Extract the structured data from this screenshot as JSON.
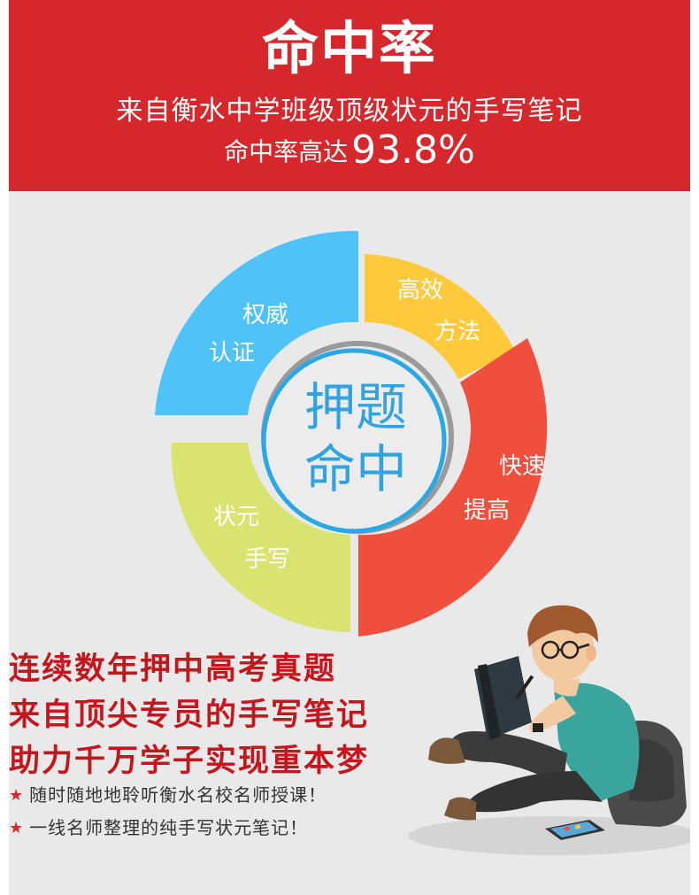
{
  "header": {
    "title": "命中率",
    "subtitle1": "来自衡水中学班级顶级状元的手写笔记",
    "subtitle2_prefix": "命中率高达",
    "subtitle2_value": "93.8%"
  },
  "donut": {
    "center_line1": "押题",
    "center_line2": "命中",
    "segments": [
      {
        "line1": "权威",
        "line2": "认证",
        "color": "#4fc3f7"
      },
      {
        "line1": "高效",
        "line2": "方法",
        "color": "#ffc93c"
      },
      {
        "line1": "快速",
        "line2": "提高",
        "color": "#ef4f3c"
      },
      {
        "line1": "状元",
        "line2": "手写",
        "color": "#d9e36f"
      }
    ],
    "center_text_color": "#33a3e0"
  },
  "highlights": [
    "连续数年押中高考真题",
    "来自顶尖专员的手写笔记",
    "助力千万学子实现重本梦"
  ],
  "bullets": [
    "随时随地地聆听衡水名校名师授课！",
    "一线名师整理的纯手写状元笔记！"
  ],
  "colors": {
    "header_red": "#d6282c",
    "highlight_red": "#c4161c",
    "background_gray": "#e9e9e9"
  }
}
